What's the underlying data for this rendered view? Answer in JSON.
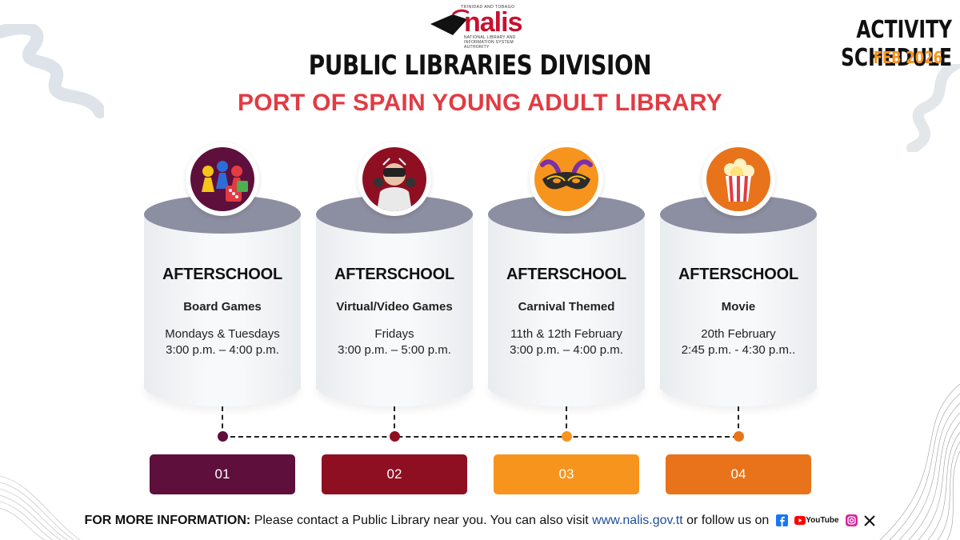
{
  "header": {
    "logo_top": "TRINIDAD AND TOBAGO",
    "logo_word": "nalis",
    "logo_sub": "NATIONAL LIBRARY AND INFORMATION SYSTEM AUTHORITY",
    "division": "PUBLIC LIBRARIES DIVISION",
    "branch": "PORT OF SPAIN YOUNG ADULT LIBRARY",
    "schedule_title": "ACTIVITY SCHEDULE",
    "schedule_date": "FEB 2026"
  },
  "cards": [
    {
      "title": "AFTERSCHOOL",
      "activity": "Board Games",
      "days": "Mondays & Tuesdays",
      "time": "3:00 p.m. – 4:00 p.m.",
      "icon": "board-games-icon",
      "color": "#5e0f3c"
    },
    {
      "title": "AFTERSCHOOL",
      "activity": "Virtual/Video Games",
      "days": "Fridays",
      "time": "3:00 p.m. – 5:00 p.m.",
      "icon": "vr-headset-icon",
      "color": "#8f0f22"
    },
    {
      "title": "AFTERSCHOOL",
      "activity": "Carnival Themed",
      "days": "11th & 12th February",
      "time": "3:00 p.m. – 4:00 p.m.",
      "icon": "carnival-mask-icon",
      "color": "#f7941d"
    },
    {
      "title": "AFTERSCHOOL",
      "activity": "Movie",
      "days": "20th February",
      "time": "2:45 p.m. - 4:30 p.m..",
      "icon": "popcorn-icon",
      "color": "#e8731a"
    }
  ],
  "steps": [
    "01",
    "02",
    "03",
    "04"
  ],
  "footer": {
    "label": "FOR MORE INFORMATION:",
    "text": "Please contact a Public Library near you. You can also visit",
    "site": "www.nalis.gov.tt",
    "follow": "or follow us on",
    "youtube_label": "YouTube"
  },
  "colors": {
    "accent_red": "#e23b43",
    "accent_orange": "#f7941d",
    "cylinder_top": "#8c8fa1"
  }
}
